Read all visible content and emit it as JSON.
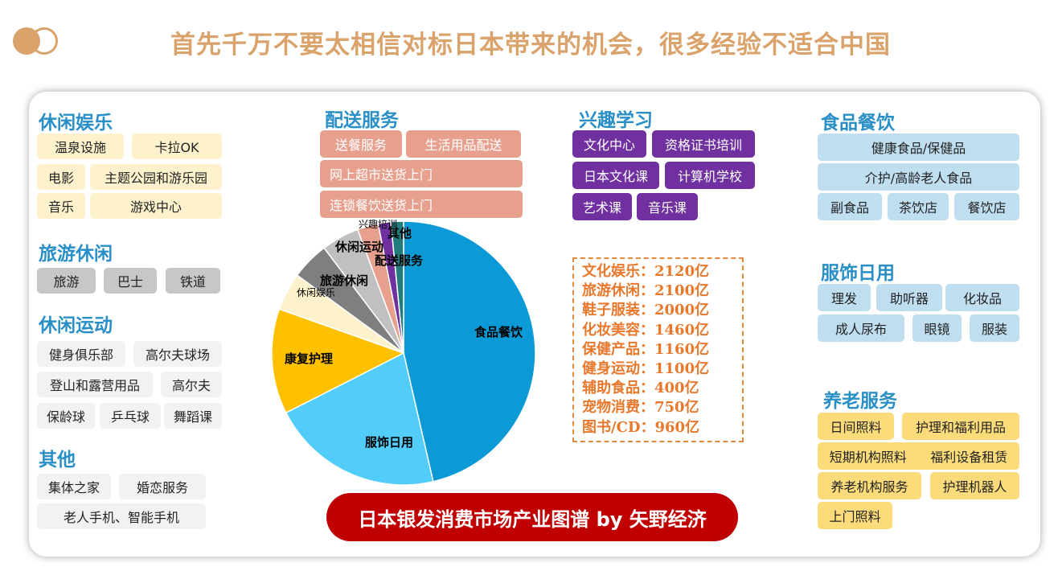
{
  "title": "首先千万不要太相信对标日本带来的机会，很多经验不适合中国",
  "banner": "日本银发消费市场产业图谱 by 矢野经济",
  "colors": {
    "accent": "#d9a36b",
    "heading": "#2a8fc6",
    "banner": "#c00000",
    "stats": "#e8782c"
  },
  "left": {
    "leisure": {
      "heading": "休闲娱乐",
      "tags": [
        "温泉设施",
        "卡拉OK",
        "电影",
        "主题公园和游乐园",
        "音乐",
        "游戏中心"
      ]
    },
    "travel": {
      "heading": "旅游休闲",
      "tags": [
        "旅游",
        "巴士",
        "铁道"
      ]
    },
    "sports": {
      "heading": "休闲运动",
      "tags": [
        "健身俱乐部",
        "高尔夫球场",
        "登山和露营用品",
        "高尔夫",
        "保龄球",
        "乒乓球",
        "舞蹈课"
      ]
    },
    "other": {
      "heading": "其他",
      "tags": [
        "集体之家",
        "婚恋服务",
        "老人手机、智能手机"
      ]
    }
  },
  "middle": {
    "delivery": {
      "heading": "配送服务",
      "tags": [
        "送餐服务",
        "生活用品配送",
        "网上超市送货上门",
        "连锁餐饮送货上门"
      ]
    },
    "learning": {
      "heading": "兴趣学习",
      "tags": [
        "文化中心",
        "资格证书培训",
        "日本文化课",
        "计算机学校",
        "艺术课",
        "音乐课"
      ]
    }
  },
  "right": {
    "food": {
      "heading": "食品餐饮",
      "tags": [
        "健康食品/保健品",
        "介护/高龄老人食品",
        "副食品",
        "茶饮店",
        "餐饮店"
      ]
    },
    "apparel": {
      "heading": "服饰日用",
      "tags": [
        "理发",
        "助听器",
        "化妆品",
        "成人尿布",
        "眼镜",
        "服装"
      ]
    },
    "elderly": {
      "heading": "养老服务",
      "tags": [
        "日间照料",
        "护理和福利用品",
        "短期机构照料",
        "福利设备租赁",
        "养老机构服务",
        "护理机器人",
        "上门照料"
      ]
    }
  },
  "stats": [
    "文化娱乐：2120亿",
    "旅游休闲：2100亿",
    "鞋子服装：2000亿",
    "化妆美容：1460亿",
    "保健产品：1160亿",
    "健身运动：1100亿",
    "辅助食品：400亿",
    "宠物消费：750亿",
    "图书/CD：960亿"
  ],
  "chart_data": {
    "type": "pie",
    "title": "",
    "series": [
      {
        "label": "食品餐饮",
        "value": 45.0,
        "color": "#0c9ad6"
      },
      {
        "label": "服饰日用",
        "value": 20.5,
        "color": "#52ccf8"
      },
      {
        "label": "康复护理",
        "value": 12.5,
        "color": "#ffc000"
      },
      {
        "label": "休闲娱乐",
        "value": 4.5,
        "color": "#fef2cc"
      },
      {
        "label": "旅游休闲",
        "value": 4.5,
        "color": "#7f7f7f"
      },
      {
        "label": "休闲运动",
        "value": 4.5,
        "color": "#c0c0c0"
      },
      {
        "label": "配送服务",
        "value": 2.5,
        "color": "#e8a08e"
      },
      {
        "label": "兴趣培训",
        "value": 1.5,
        "color": "#7030a0"
      },
      {
        "label": "其他",
        "value": 1.5,
        "color": "#217c7e"
      }
    ]
  }
}
